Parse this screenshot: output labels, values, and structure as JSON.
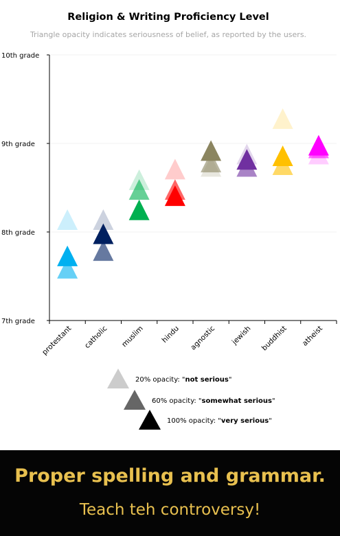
{
  "chart_data": {
    "type": "scatter",
    "marker": "triangle",
    "title": "Religion & Writing Proficiency Level",
    "subtitle": "Triangle opacity indicates seriousness  of belief, as reported by the users.",
    "yticks": [
      "7th grade",
      "8th grade",
      "9th grade",
      "10th grade"
    ],
    "ylim": [
      7,
      10
    ],
    "grid": true,
    "categories": [
      "protestant",
      "catholic",
      "muslim",
      "hindu",
      "agnostic",
      "jewish",
      "buddhist",
      "atheist"
    ],
    "colors": [
      "#00b0f0",
      "#002060",
      "#00b050",
      "#ff0000",
      "#8b8560",
      "#7030a0",
      "#ffc000",
      "#ff00ff"
    ],
    "series": [
      {
        "name": "not serious",
        "opacity": 0.2,
        "values": [
          8.14,
          8.14,
          8.59,
          8.71,
          8.74,
          8.88,
          9.28,
          8.88
        ]
      },
      {
        "name": "somewhat serious",
        "opacity": 0.6,
        "values": [
          7.59,
          7.79,
          8.48,
          8.48,
          8.79,
          8.74,
          8.76,
          8.95
        ]
      },
      {
        "name": "very serious",
        "opacity": 1.0,
        "values": [
          7.73,
          7.98,
          8.25,
          8.41,
          8.92,
          8.82,
          8.86,
          8.98
        ]
      }
    ],
    "legend": [
      {
        "opacity": 0.2,
        "prefix": "20% opacity: \"",
        "emph": "not serious",
        "suffix": "\""
      },
      {
        "opacity": 0.6,
        "prefix": "60% opacity: \"",
        "emph": "somewhat serious",
        "suffix": "\""
      },
      {
        "opacity": 1.0,
        "prefix": "100% opacity: \"",
        "emph": "very serious",
        "suffix": "\""
      }
    ],
    "legend_placement": "bottom"
  },
  "banner": {
    "headline": "Proper spelling and grammar.",
    "subline": "Teach teh controversy!"
  }
}
